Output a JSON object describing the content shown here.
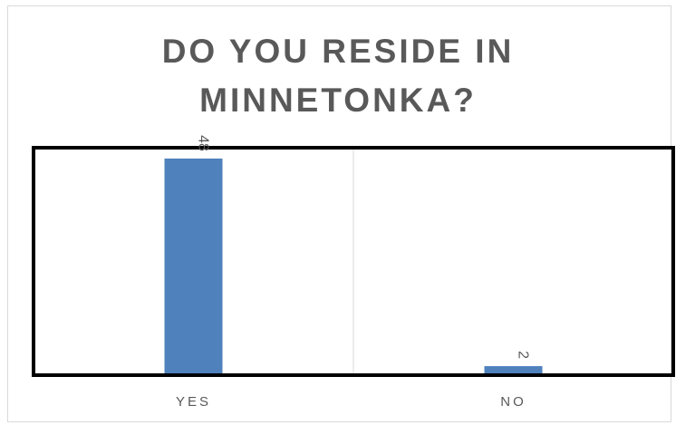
{
  "chart_data": {
    "type": "bar",
    "title_lines": [
      "DO YOU RESIDE IN",
      "MINNETONKA?"
    ],
    "categories": [
      "YES",
      "NO"
    ],
    "values": [
      48,
      2
    ],
    "data_labels": [
      "48",
      "2"
    ],
    "data_label_rotation": "vertical",
    "ylim": [
      0,
      50
    ],
    "grid": false,
    "legend": "none",
    "colors": {
      "bar": "#4f81bd",
      "title": "#595959",
      "labels": "#595959",
      "plot_border": "#000000",
      "divider": "#d9d9d9"
    }
  }
}
